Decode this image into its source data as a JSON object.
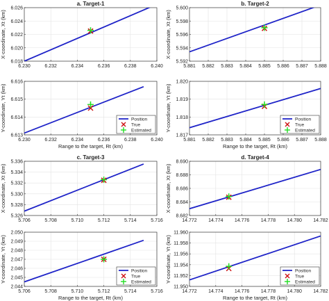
{
  "colors": {
    "line": "#1f24c8",
    "true_marker": "#cc1111",
    "estimated_marker": "#22dd22",
    "grid": "#e3e3e3",
    "frame": "#333333"
  },
  "legend_labels": [
    "Position",
    "True",
    "Estimated"
  ],
  "chart_data": [
    {
      "type": "line",
      "title": "a. Target-1",
      "ylabel": "X-coordinate, Xt (km)",
      "xlabel": "",
      "xlim": [
        6.23,
        6.24
      ],
      "ylim": [
        6.018,
        6.026
      ],
      "xticks": [
        "6.230",
        "6.232",
        "6.234",
        "6.236",
        "6.238",
        "6.240"
      ],
      "yticks": [
        "6.018",
        "6.020",
        "6.022",
        "6.024",
        "6.026"
      ],
      "series": [
        {
          "name": "Position",
          "x": [
            6.23,
            6.24
          ],
          "y": [
            6.018,
            6.0265
          ]
        },
        {
          "name": "True",
          "x": [
            6.235
          ],
          "y": [
            6.0225
          ]
        },
        {
          "name": "Estimated",
          "x": [
            6.235
          ],
          "y": [
            6.0226
          ]
        }
      ],
      "grid": true,
      "legend": "none"
    },
    {
      "type": "line",
      "title": "",
      "ylabel": "Y-coordinate, Yt (km)",
      "xlabel": "Range to the target, Rt (km)",
      "xlim": [
        6.23,
        6.24
      ],
      "ylim": [
        6.613,
        6.616
      ],
      "xticks": [
        "6.230",
        "6.232",
        "6.234",
        "6.236",
        "6.238",
        "6.240"
      ],
      "yticks": [
        "6.613",
        "6.614",
        "6.615",
        "6.616"
      ],
      "series": [
        {
          "name": "Position",
          "x": [
            6.23,
            6.239
          ],
          "y": [
            6.6131,
            6.6157
          ]
        },
        {
          "name": "True",
          "x": [
            6.235
          ],
          "y": [
            6.6145
          ]
        },
        {
          "name": "Estimated",
          "x": [
            6.235
          ],
          "y": [
            6.6147
          ]
        }
      ],
      "grid": true,
      "legend": "bottom-right"
    },
    {
      "type": "line",
      "title": "b. Target-2",
      "ylabel": "X-coordinate, Xt (km)",
      "xlabel": "",
      "xlim": [
        5.881,
        5.888
      ],
      "ylim": [
        5.592,
        5.6
      ],
      "xticks": [
        "5.881",
        "5.882",
        "5.883",
        "5.884",
        "5.885",
        "5.886",
        "5.887",
        "5.888"
      ],
      "yticks": [
        "5.592",
        "5.594",
        "5.596",
        "5.598",
        "5.600"
      ],
      "series": [
        {
          "name": "Position",
          "x": [
            5.881,
            5.888
          ],
          "y": [
            5.5934,
            5.6004
          ]
        },
        {
          "name": "True",
          "x": [
            5.885
          ],
          "y": [
            5.5969
          ]
        },
        {
          "name": "Estimated",
          "x": [
            5.885
          ],
          "y": [
            5.597
          ]
        }
      ],
      "grid": true,
      "legend": "none"
    },
    {
      "type": "line",
      "title": "",
      "ylabel": "Y-coordinate, Yt (km)",
      "xlabel": "Range to the target, Rt (km)",
      "xlim": [
        5.881,
        5.888
      ],
      "ylim": [
        1.817,
        1.82
      ],
      "xticks": [
        "5.881",
        "5.882",
        "5.883",
        "5.884",
        "5.885",
        "5.886",
        "5.887",
        "5.888"
      ],
      "yticks": [
        "1.817",
        "1.818",
        "1.819",
        "1.820"
      ],
      "series": [
        {
          "name": "Position",
          "x": [
            5.881,
            5.888
          ],
          "y": [
            1.8174,
            1.8196
          ]
        },
        {
          "name": "True",
          "x": [
            5.885
          ],
          "y": [
            1.8186
          ]
        },
        {
          "name": "Estimated",
          "x": [
            5.885
          ],
          "y": [
            1.8187
          ]
        }
      ],
      "grid": true,
      "legend": "bottom-right"
    },
    {
      "type": "line",
      "title": "c. Target-3",
      "ylabel": "X-coordinate, Xt (km)",
      "xlabel": "",
      "xlim": [
        5.706,
        5.716
      ],
      "ylim": [
        5.326,
        5.336
      ],
      "xticks": [
        "5.706",
        "5.708",
        "5.710",
        "5.712",
        "5.714",
        "5.716"
      ],
      "yticks": [
        "5.326",
        "5.328",
        "5.330",
        "5.332",
        "5.334",
        "5.336"
      ],
      "series": [
        {
          "name": "Position",
          "x": [
            5.706,
            5.715
          ],
          "y": [
            5.3268,
            5.3355
          ]
        },
        {
          "name": "True",
          "x": [
            5.712
          ],
          "y": [
            5.3325
          ]
        },
        {
          "name": "Estimated",
          "x": [
            5.712
          ],
          "y": [
            5.3326
          ]
        }
      ],
      "grid": true,
      "legend": "none"
    },
    {
      "type": "line",
      "title": "",
      "ylabel": "Y-coordinate, Yt (km)",
      "xlabel": "Range to the target, Rt (km)",
      "xlim": [
        5.706,
        5.716
      ],
      "ylim": [
        2.044,
        2.05
      ],
      "xticks": [
        "5.706",
        "5.708",
        "5.710",
        "5.712",
        "5.714",
        "5.716"
      ],
      "yticks": [
        "2.044",
        "2.045",
        "2.046",
        "2.047",
        "2.048",
        "2.049",
        "2.050"
      ],
      "series": [
        {
          "name": "Position",
          "x": [
            5.706,
            5.715
          ],
          "y": [
            2.0445,
            2.0491
          ]
        },
        {
          "name": "True",
          "x": [
            5.712
          ],
          "y": [
            2.047
          ]
        },
        {
          "name": "Estimated",
          "x": [
            5.712
          ],
          "y": [
            2.047
          ]
        }
      ],
      "grid": true,
      "legend": "bottom-right"
    },
    {
      "type": "line",
      "title": "d. Target-4",
      "ylabel": "X-coordinate, Xt (km)",
      "xlabel": "",
      "xlim": [
        14.772,
        14.782
      ],
      "ylim": [
        8.682,
        8.69
      ],
      "xticks": [
        "14.772",
        "14.774",
        "14.776",
        "14.778",
        "14.780",
        "14.782"
      ],
      "yticks": [
        "8.682",
        "8.684",
        "8.686",
        "8.688",
        "8.690"
      ],
      "series": [
        {
          "name": "Position",
          "x": [
            14.772,
            14.782
          ],
          "y": [
            8.683,
            8.6888
          ]
        },
        {
          "name": "True",
          "x": [
            14.775
          ],
          "y": [
            8.6847
          ]
        },
        {
          "name": "Estimated",
          "x": [
            14.775
          ],
          "y": [
            8.6848
          ]
        }
      ],
      "grid": true,
      "legend": "none"
    },
    {
      "type": "line",
      "title": "",
      "ylabel": "Y-coordinate, Yt (km)",
      "xlabel": "Range to the target, Rt (km)",
      "xlim": [
        14.772,
        14.782
      ],
      "ylim": [
        11.95,
        11.96
      ],
      "xticks": [
        "14.772",
        "14.774",
        "14.776",
        "14.778",
        "14.780",
        "14.782"
      ],
      "yticks": [
        "11.950",
        "11.952",
        "11.954",
        "11.956",
        "11.958",
        "11.960"
      ],
      "series": [
        {
          "name": "Position",
          "x": [
            14.772,
            14.782
          ],
          "y": [
            11.9512,
            11.9593
          ]
        },
        {
          "name": "True",
          "x": [
            14.775
          ],
          "y": [
            11.9533
          ]
        },
        {
          "name": "Estimated",
          "x": [
            14.775
          ],
          "y": [
            11.9537
          ]
        }
      ],
      "grid": true,
      "legend": "bottom-right"
    }
  ]
}
